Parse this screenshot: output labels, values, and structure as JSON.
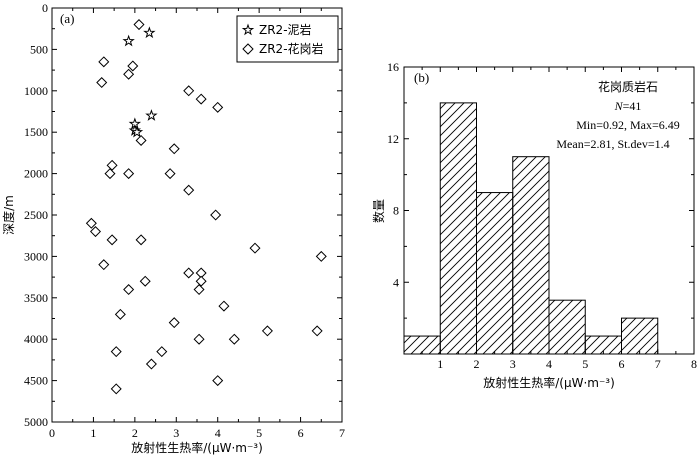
{
  "chart_data": [
    {
      "type": "scatter",
      "panel_label": "(a)",
      "xlabel": "放射性生热率/(μW·m⁻³)",
      "ylabel": "深度/m",
      "xlim": [
        0,
        7
      ],
      "ylim": [
        5000,
        0
      ],
      "y_inverted": true,
      "x_ticks": [
        "0",
        "1",
        "2",
        "3",
        "4",
        "5",
        "6",
        "7"
      ],
      "y_ticks": [
        "0",
        "500",
        "1000",
        "1500",
        "2000",
        "2500",
        "3000",
        "3500",
        "4000",
        "4500",
        "5000"
      ],
      "legend_position": "top-right",
      "series": [
        {
          "name": "ZR2-泥岩",
          "marker": "star",
          "points": [
            [
              2.35,
              300
            ],
            [
              1.85,
              400
            ],
            [
              2.4,
              1300
            ],
            [
              2.0,
              1400
            ],
            [
              2.0,
              1480
            ],
            [
              2.05,
              1500
            ]
          ]
        },
        {
          "name": "ZR2-花岗岩",
          "marker": "diamond",
          "points": [
            [
              2.1,
              200
            ],
            [
              1.25,
              650
            ],
            [
              1.95,
              700
            ],
            [
              1.85,
              800
            ],
            [
              1.2,
              900
            ],
            [
              3.3,
              1000
            ],
            [
              3.6,
              1100
            ],
            [
              4.0,
              1200
            ],
            [
              2.15,
              1600
            ],
            [
              2.95,
              1700
            ],
            [
              1.45,
              1900
            ],
            [
              1.4,
              2000
            ],
            [
              1.85,
              2000
            ],
            [
              2.85,
              2000
            ],
            [
              3.3,
              2200
            ],
            [
              3.95,
              2500
            ],
            [
              0.95,
              2600
            ],
            [
              1.05,
              2700
            ],
            [
              1.45,
              2800
            ],
            [
              2.15,
              2800
            ],
            [
              4.9,
              2900
            ],
            [
              6.5,
              3000
            ],
            [
              1.25,
              3100
            ],
            [
              3.3,
              3200
            ],
            [
              3.6,
              3200
            ],
            [
              2.25,
              3300
            ],
            [
              3.6,
              3300
            ],
            [
              1.85,
              3400
            ],
            [
              3.55,
              3400
            ],
            [
              4.15,
              3600
            ],
            [
              1.65,
              3700
            ],
            [
              2.95,
              3800
            ],
            [
              5.2,
              3900
            ],
            [
              6.4,
              3900
            ],
            [
              3.55,
              4000
            ],
            [
              4.4,
              4000
            ],
            [
              1.55,
              4150
            ],
            [
              2.65,
              4150
            ],
            [
              2.4,
              4300
            ],
            [
              4.0,
              4500
            ],
            [
              1.55,
              4600
            ]
          ]
        }
      ]
    },
    {
      "type": "bar",
      "subtype": "histogram",
      "panel_label": "(b)",
      "xlabel": "放射性生热率/(μW·m⁻³)",
      "ylabel": "数量",
      "xlim": [
        0,
        8
      ],
      "ylim": [
        0,
        16
      ],
      "x_ticks": [
        "1",
        "2",
        "3",
        "4",
        "5",
        "6",
        "7",
        "8"
      ],
      "y_ticks": [
        "4",
        "8",
        "12",
        "16"
      ],
      "bins": [
        [
          0,
          1
        ],
        [
          1,
          2
        ],
        [
          2,
          3
        ],
        [
          3,
          4
        ],
        [
          4,
          5
        ],
        [
          5,
          6
        ],
        [
          6,
          7
        ]
      ],
      "values": [
        1,
        14,
        9,
        11,
        3,
        1,
        2
      ],
      "annotation": {
        "title": "花岗质岩石",
        "n_label": "N",
        "n_value": "=41",
        "range": "Min=0.92, Max=6.49",
        "stats": "Mean=2.81, St.dev=1.4"
      }
    }
  ]
}
